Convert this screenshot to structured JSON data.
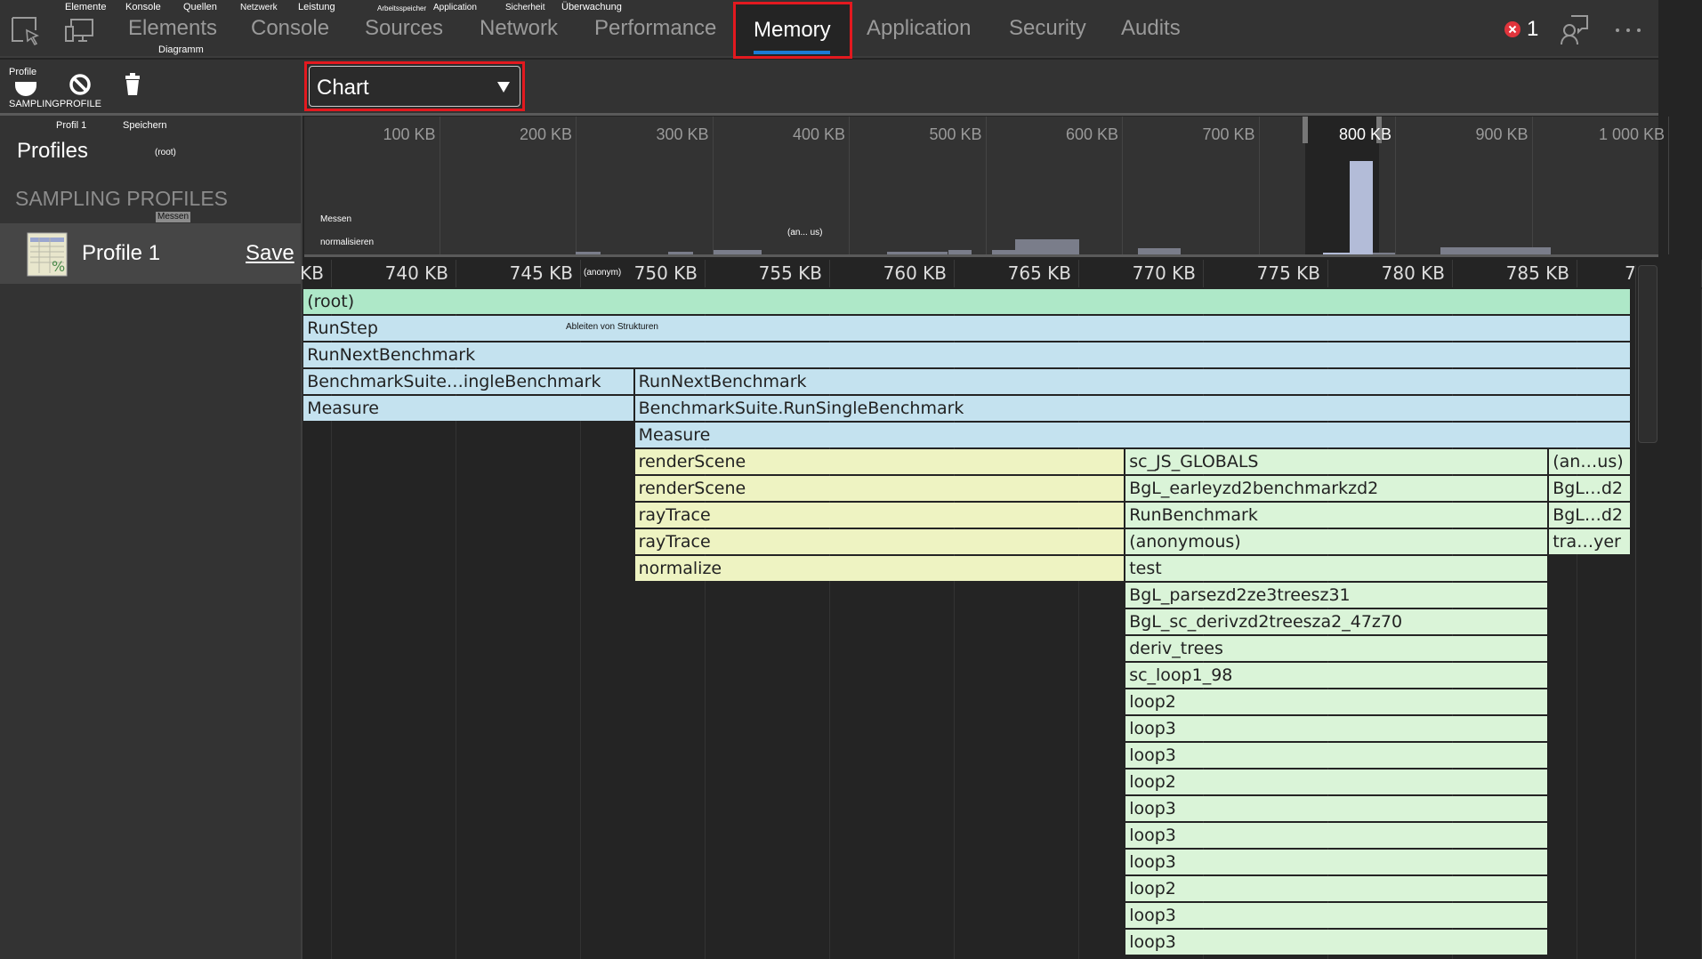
{
  "top_tabs": {
    "items": [
      "Elements",
      "Console",
      "Sources",
      "Network",
      "Performance",
      "Memory",
      "Application",
      "Security",
      "Audits"
    ],
    "active": "Memory",
    "overlay_labels": [
      "Elemente",
      "Konsole",
      "Quellen",
      "Netzwerk",
      "Leistung",
      "Arbeitsspeicher",
      "Application",
      "Sicherheit",
      "Überwachung",
      "Diagramm"
    ],
    "error_count": "1",
    "icons": [
      "inspect-icon",
      "device-toolbar-icon",
      "error-icon",
      "feedback-icon",
      "more-icon"
    ]
  },
  "toolbar": {
    "profile_label": "Profile",
    "sampling_label": "SAMPLINGPROFILE",
    "view_select": "Chart",
    "icons": [
      "record-icon",
      "clear-icon",
      "trash-icon"
    ]
  },
  "sidebar": {
    "overlay_profile": "Profil 1",
    "overlay_save": "Speichern",
    "title": "Profiles",
    "overlay_root": "(root)",
    "section": "SAMPLING PROFILES",
    "overlay_measure": "Messen",
    "profile_name": "Profile 1",
    "save_link": "Save"
  },
  "overlay_labels": {
    "measure": "Messen",
    "anonymous_short": "(an... us)",
    "anonymous": "(anonym)",
    "normalize": "normalisieren",
    "derive": "Ableiten von Strukturen"
  },
  "colors": {
    "accent": "#1a7bd6",
    "highlight": "#e3191f",
    "root": "#aee8c8",
    "blue": "#c4e2ef",
    "yellow": "#eef3c2",
    "green": "#daf4d8",
    "overview_bar": "#7a7d8a",
    "overview_selected": "#b3bcd8"
  },
  "chart_data": {
    "type": "bar",
    "overview": {
      "ticks": [
        "100 KB",
        "200 KB",
        "300 KB",
        "400 KB",
        "500 KB",
        "600 KB",
        "700 KB",
        "800 KB",
        "900 KB",
        "1 000 KB"
      ],
      "tick_values": [
        100,
        200,
        300,
        400,
        500,
        600,
        700,
        800,
        900,
        1000
      ],
      "selection_kb": [
        734,
        788
      ],
      "bars": [
        {
          "from": 200,
          "to": 218,
          "level": 0.02
        },
        {
          "from": 268,
          "to": 286,
          "level": 0.02
        },
        {
          "from": 301,
          "to": 336,
          "level": 0.03
        },
        {
          "from": 428,
          "to": 472,
          "level": 0.02
        },
        {
          "from": 473,
          "to": 490,
          "level": 0.03
        },
        {
          "from": 505,
          "to": 522,
          "level": 0.03
        },
        {
          "from": 522,
          "to": 569,
          "level": 0.11
        },
        {
          "from": 612,
          "to": 643,
          "level": 0.045
        },
        {
          "from": 747,
          "to": 767,
          "level": 0.015
        },
        {
          "from": 767,
          "to": 784,
          "level": 0.68
        },
        {
          "from": 784,
          "to": 800,
          "level": 0.01
        },
        {
          "from": 833,
          "to": 914,
          "level": 0.05
        }
      ]
    },
    "detail_ticks": [
      "KB",
      "740 KB",
      "745 KB",
      "750 KB",
      "755 KB",
      "760 KB",
      "765 KB",
      "770 KB",
      "775 KB",
      "780 KB",
      "785 KB",
      "7"
    ],
    "detail_tick_values": [
      735,
      740,
      745,
      750,
      755,
      760,
      765,
      770,
      775,
      780,
      785,
      790
    ],
    "flame": [
      [
        {
          "name": "(root)",
          "from": 733.9,
          "to": 787.2,
          "color": "root"
        }
      ],
      [
        {
          "name": "RunStep",
          "from": 733.9,
          "to": 787.2,
          "color": "blue"
        }
      ],
      [
        {
          "name": "RunNextBenchmark",
          "from": 733.9,
          "to": 787.2,
          "color": "blue"
        }
      ],
      [
        {
          "name": "BenchmarkSuite…ingleBenchmark",
          "from": 733.9,
          "to": 747.2,
          "color": "blue"
        },
        {
          "name": "RunNextBenchmark",
          "from": 747.2,
          "to": 787.2,
          "color": "blue"
        }
      ],
      [
        {
          "name": "Measure",
          "from": 733.9,
          "to": 747.2,
          "color": "blue"
        },
        {
          "name": "BenchmarkSuite.RunSingleBenchmark",
          "from": 747.2,
          "to": 787.2,
          "color": "blue"
        }
      ],
      [
        {
          "name": "Measure",
          "from": 747.2,
          "to": 787.2,
          "color": "blue"
        }
      ],
      [
        {
          "name": "renderScene",
          "from": 747.2,
          "to": 766.9,
          "color": "yellow"
        },
        {
          "name": "sc_JS_GLOBALS",
          "from": 766.9,
          "to": 783.9,
          "color": "green"
        },
        {
          "name": "(an…us)",
          "from": 783.9,
          "to": 787.2,
          "color": "green"
        }
      ],
      [
        {
          "name": "renderScene",
          "from": 747.2,
          "to": 766.9,
          "color": "yellow"
        },
        {
          "name": "BgL_earleyzd2benchmarkzd2",
          "from": 766.9,
          "to": 783.9,
          "color": "green"
        },
        {
          "name": "BgL…d2",
          "from": 783.9,
          "to": 787.2,
          "color": "green"
        }
      ],
      [
        {
          "name": "rayTrace",
          "from": 747.2,
          "to": 766.9,
          "color": "yellow"
        },
        {
          "name": "RunBenchmark",
          "from": 766.9,
          "to": 783.9,
          "color": "green"
        },
        {
          "name": "BgL…d2",
          "from": 783.9,
          "to": 787.2,
          "color": "green"
        }
      ],
      [
        {
          "name": "rayTrace",
          "from": 747.2,
          "to": 766.9,
          "color": "yellow"
        },
        {
          "name": "(anonymous)",
          "from": 766.9,
          "to": 783.9,
          "color": "green"
        },
        {
          "name": "tra…yer",
          "from": 783.9,
          "to": 787.2,
          "color": "green"
        }
      ],
      [
        {
          "name": "normalize",
          "from": 747.2,
          "to": 766.9,
          "color": "yellow"
        },
        {
          "name": "test",
          "from": 766.9,
          "to": 783.9,
          "color": "green"
        }
      ],
      [
        {
          "name": "BgL_parsezd2ze3treesz31",
          "from": 766.9,
          "to": 783.9,
          "color": "green"
        }
      ],
      [
        {
          "name": "BgL_sc_derivzd2treesza2_47z70",
          "from": 766.9,
          "to": 783.9,
          "color": "green"
        }
      ],
      [
        {
          "name": "deriv_trees",
          "from": 766.9,
          "to": 783.9,
          "color": "green"
        }
      ],
      [
        {
          "name": "sc_loop1_98",
          "from": 766.9,
          "to": 783.9,
          "color": "green"
        }
      ],
      [
        {
          "name": "loop2",
          "from": 766.9,
          "to": 783.9,
          "color": "green"
        }
      ],
      [
        {
          "name": "loop3",
          "from": 766.9,
          "to": 783.9,
          "color": "green"
        }
      ],
      [
        {
          "name": "loop3",
          "from": 766.9,
          "to": 783.9,
          "color": "green"
        }
      ],
      [
        {
          "name": "loop2",
          "from": 766.9,
          "to": 783.9,
          "color": "green"
        }
      ],
      [
        {
          "name": "loop3",
          "from": 766.9,
          "to": 783.9,
          "color": "green"
        }
      ],
      [
        {
          "name": "loop3",
          "from": 766.9,
          "to": 783.9,
          "color": "green"
        }
      ],
      [
        {
          "name": "loop3",
          "from": 766.9,
          "to": 783.9,
          "color": "green"
        }
      ],
      [
        {
          "name": "loop2",
          "from": 766.9,
          "to": 783.9,
          "color": "green"
        }
      ],
      [
        {
          "name": "loop3",
          "from": 766.9,
          "to": 783.9,
          "color": "green"
        }
      ],
      [
        {
          "name": "loop3",
          "from": 766.9,
          "to": 783.9,
          "color": "green"
        }
      ]
    ]
  }
}
